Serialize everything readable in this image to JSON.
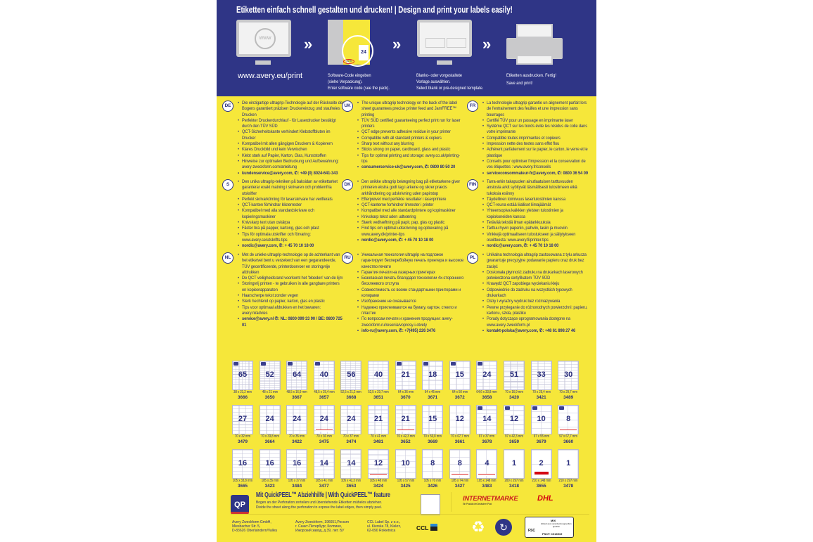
{
  "header": {
    "title": "Etiketten einfach schnell gestalten und drucken! | Design and print your labels easily!",
    "url": "www.avery.eu/print",
    "steps": [
      {
        "lines": [
          "Software-Code eingeben",
          "(siehe Verpackung).",
          "Enter software code (see the pack)."
        ],
        "sheet_number": "24",
        "code": "3475"
      },
      {
        "lines": [
          "Blanko- oder vorgestaltete",
          "Vorlage auswählen.",
          "Select blank or pre-designed template."
        ]
      },
      {
        "lines": [
          "Etiketten ausdrucken. Fertig!",
          "Save and print!"
        ]
      }
    ],
    "www_label": "WWW",
    "chevron": "»"
  },
  "languages": [
    {
      "code": "DE",
      "items": [
        "Die einzigartige ultragrip-Technologie auf der Rückseite des Bogens garantiert präzisen Druckereinzug und staufreies Drucken",
        "Perfekter Druckerdurchlauf - für Laserdrucker bestätigt durch den TÜV SÜD",
        "QCT-Sicherheitskante verhindert Klebstoffbluten im Drucker",
        "Kompatibel mit allen gängigen Druckern & Kopierern",
        "Klares Druckbild und kein Verwischen",
        "Klebt stark auf Papier, Karton, Glas, Kunststoffen",
        "Hinweise zur optimalen Bedruckung und Aufbewahrung: avery-zweckform.com/anleitung"
      ],
      "contact": "kundenservice@avery.com, ✆: +49 (0) 8024-641-343"
    },
    {
      "code": "UK",
      "items": [
        "The unique ultragrip technology on the back of the label sheet guarantees precise printer feed and JamFREE™ printing",
        "TÜV SÜD certified guaranteeing perfect print run for laser printers",
        "QCT edge prevents adhesive residue in your printer",
        "Compatible with all standard printers & copiers",
        "Sharp text without any blurring",
        "Sticks strong on paper, cardboard, glass and plastic",
        "Tips for optimal printing and storage: avery.co.uk/printing-tips"
      ],
      "contact": "consumerservice-uk@avery.com, ✆: 0800 80 50 20"
    },
    {
      "code": "FR",
      "items": [
        "La technologie ultragrip garantie un alignement parfait lors de l'entrainement des feuilles et une impression sans bourrages",
        "Certifié TÜV pour un passage en imprimante laser",
        "Système QCT sur les bords évite les résidus de colle dans votre imprimante",
        "Compatible toutes imprimantes et copieurs",
        "Impression nette des textes sans effet flou",
        "Adhérent parfaitement sur le papier, le carton, le verre et le plastique",
        "Conseils pour optimiser l'impression et la conservation de vos étiquettes : www.avery.fr/conseils"
      ],
      "contact": "serviceconsommateur-fr@avery.com, ✆: 0800 36 54 09"
    },
    {
      "code": "S",
      "items": [
        "Den unika ultragrip-tekniken på baksidan av etikettarket garanterar exakt matning i skrivaren och problemfria utskrifter",
        "Perfekt skrivarkörning för laserskrivare har verifierats",
        "QCT-kanten förhindrar klisterrester",
        "Kompatibel med alla standardskrivare och kopieringsmaskiner",
        "Knivskarp text utan oskärpa",
        "Fäster bra på papper, kartong, glas och plast",
        "Tips för optimala utskrifter och förvaring: www.avery.se/utskrifts-tips"
      ],
      "contact": "nordic@avery.com, ✆: + 45 70 10 18 00"
    },
    {
      "code": "DK",
      "items": [
        "Den unikke ultragrip belægning bag på etiketarkene giver printeren ekstra godt tag i arkene og sikrer præcis arkhåndtering og udskrivning uden papirstop",
        "Efterprøvet med perfekte resultater i laserprintere",
        "QCT-kanterne forhindrer limrester i printer",
        "Kompatibel med alle standardprintere og kopimaskiner",
        "Knivskarp tekst uden udtværing",
        "Stærk vedhæftning på papir, pap, glas og plastic",
        "Find tips om optimal udskrivning og opbevaring på www.avery.dk/printer-tips"
      ],
      "contact": "nordic@avery.com, ✆: + 45 70 10 18 00"
    },
    {
      "code": "FIN",
      "items": [
        "Tarra-arkin takapuolen ainutlaatuisen tarttuvuuden ansiosta arkit syöttyvät täsmällisesti tulostimeen eikä tukoksia esiinny",
        "Täydellinen toimivuus lasertulostimien kanssa",
        "QCT-reuna estää liialliset liimajäämät",
        "Yhteensopiva kaikkien yleisten tulostimien ja kopiokoneiden kanssa",
        "Terävää tekstiä ilman epätarkkuuksia",
        "Tarttuu hyvin paperiin, pahviin, lasiin ja muoviin",
        "Vinkkejä optimaaliseen tulostukseen ja säilytykseen osoitteesta: www.avery.fi/printer-tips"
      ],
      "contact": "nordic@avery.com, ✆: + 45 70 10 18 00"
    },
    {
      "code": "NL",
      "items": [
        "Met de unieke ultragrip-technologie op de achterkant van het etiketvel bent u verzekerd van een gegarandeerde, TÜV gecertificeerde, printerdoorvoer en storingvrije afdrukken",
        "De QCT veiligheidsrand voorkomt het 'bloeden' van de lijm",
        "Storingvrij printen - te gebruiken in alle gangbare printers en kopieerapparaten",
        "Haarscherpe tekst zonder vegen",
        "Sterk hechtend op papier, karton, glas en plastic",
        "Tips voor optimaal afdrukken en het bewaren: avery.nl/advies"
      ],
      "contact": "service@avery.nl ✆: NL: 0800 099 33 90 / BE: 0800 725 01"
    },
    {
      "code": "RU",
      "items": [
        "Уникальная технология ultragrip на подложке гарантирует бесперебойную печать принтера и высокое качество печати",
        "Гарантия печати на лазерных принтерах",
        "Безопасная печать благодаря технологии 4х-стороннего бесклеевого отступа",
        "Совместимость со всеми стандартными принтерами и копирами",
        "Изображение не смазывается",
        "Надежно приклеиваются на бумагу, картон, стекло и пластик",
        "По вопросам печати и хранения продукции: avery-zweckform.ru/resenia/voprosy-i-otvety"
      ],
      "contact": "info-ru@avery.com, ✆: +7(495) 226 3476"
    },
    {
      "code": "PL",
      "items": [
        "Unikalna technologia ultragrip zastosowana z tyłu arkusza gwarantuje precyzyjne podawanie papieru oraz druk bez zacięć",
        "Doskonała płynność zadruku na drukarkach laserowych potwierdzona certyfikatem TÜV SÜD",
        "Krawędź QCT zapobiega wyciekaniu kleju",
        "Odpowiednie do zadruku na wszystkich typowych drukarkach",
        "Ostry i wyraźny wydruk bez rozmazywania",
        "Pewne przyleganie do różnorodnych powierzchni: papieru, kartonu, szkła, plastiku",
        "Porady dotyczące oprogramowania dostępne na www.avery-zweckform.pl"
      ],
      "contact": "kontakt-polska@avery.com, ✆: +48 61 898 27 46"
    }
  ],
  "labels": [
    [
      {
        "n": "65",
        "dim": "38 x 21,2 mm",
        "code": "3666",
        "logo": true
      },
      {
        "n": "52",
        "dim": "48 x 21 mm",
        "code": "3650",
        "logo": true
      },
      {
        "n": "64",
        "dim": "48,5 x 16,9 mm",
        "code": "3667",
        "logo": true
      },
      {
        "n": "40",
        "dim": "48,5 x 25,4 mm",
        "code": "3657",
        "logo": true
      },
      {
        "n": "56",
        "dim": "52,5 x 21,2 mm",
        "code": "3668"
      },
      {
        "n": "40",
        "dim": "52,5 x 29,7 mm",
        "code": "3651"
      },
      {
        "n": "21",
        "dim": "64 x 36 mm",
        "code": "3670",
        "logo": true
      },
      {
        "n": "18",
        "dim": "64 x 45 mm",
        "code": "3671",
        "logo": true
      },
      {
        "n": "15",
        "dim": "64 x 50 mm",
        "code": "3672",
        "logo": true
      },
      {
        "n": "24",
        "dim": "64,6 x 33,8 mm",
        "code": "3658",
        "logo": true
      },
      {
        "n": "51",
        "dim": "70 x 16,9 mm",
        "code": "3420"
      },
      {
        "n": "33",
        "dim": "70 x 25,4 mm",
        "code": "3421"
      },
      {
        "n": "30",
        "dim": "70 x 29,7 mm",
        "code": "3489"
      }
    ],
    [
      {
        "n": "27",
        "dim": "70 x 32 mm",
        "code": "3479"
      },
      {
        "n": "24",
        "dim": "70 x 33,8 mm",
        "code": "3664"
      },
      {
        "n": "24",
        "dim": "70 x 35 mm",
        "code": "3422"
      },
      {
        "n": "24",
        "dim": "70 x 36 mm",
        "code": "3475",
        "im": true
      },
      {
        "n": "24",
        "dim": "70 x 37 mm",
        "code": "3474"
      },
      {
        "n": "21",
        "dim": "70 x 41 mm",
        "code": "3481"
      },
      {
        "n": "21",
        "dim": "70 x 42,3 mm",
        "code": "3652",
        "im": true
      },
      {
        "n": "15",
        "dim": "70 x 50,8 mm",
        "code": "3669"
      },
      {
        "n": "12",
        "dim": "70 x 67,7 mm",
        "code": "3661"
      },
      {
        "n": "14",
        "dim": "97 x 37 mm",
        "code": "3678",
        "logo": true
      },
      {
        "n": "12",
        "dim": "97 x 42,3 mm",
        "code": "3659",
        "logo": true
      },
      {
        "n": "10",
        "dim": "97 x 55 mm",
        "code": "3679",
        "logo": true
      },
      {
        "n": "8",
        "dim": "97 x 67,7 mm",
        "code": "3660",
        "logo": true,
        "im": true
      }
    ],
    [
      {
        "n": "16",
        "dim": "105 x 33,8 mm",
        "code": "3665"
      },
      {
        "n": "16",
        "dim": "105 x 35 mm",
        "code": "3423"
      },
      {
        "n": "16",
        "dim": "105 x 37 mm",
        "code": "3484"
      },
      {
        "n": "14",
        "dim": "105 x 41 mm",
        "code": "3477"
      },
      {
        "n": "14",
        "dim": "105 x 42,3 mm",
        "code": "3653"
      },
      {
        "n": "12",
        "dim": "105 x 48 mm",
        "code": "3424",
        "im": true
      },
      {
        "n": "10",
        "dim": "105 x 57 mm",
        "code": "3425"
      },
      {
        "n": "8",
        "dim": "105 x 70 mm",
        "code": "3426"
      },
      {
        "n": "8",
        "dim": "105 x 74 mm",
        "code": "3427",
        "im": true
      },
      {
        "n": "4",
        "dim": "105 x 148 mm",
        "code": "3483",
        "im": true
      },
      {
        "n": "1",
        "dim": "200 x 297 mm",
        "code": "3418"
      },
      {
        "n": "2",
        "dim": "210 x 148 mm",
        "code": "3655",
        "dhl": true
      },
      {
        "n": "1",
        "dim": "210 x 297 mm",
        "code": "3478"
      }
    ]
  ],
  "quickpeel": {
    "logo": "QP",
    "title": "Mit QuickPEEL™ Abziehhilfe | With QuickPEEL™ feature",
    "line1": "Bogen an der Perforation zerteilen und überstehende Etiketten mühelos abziehen.",
    "line2": "Divide the sheet along the perforation to expose the label edges, then simply peel."
  },
  "partners": {
    "internetmarke": "INTERNETMARKE",
    "internetmarke_sub": "Ein Produkt der Deutschen Post",
    "dhl": "DHL"
  },
  "footer": {
    "addresses": [
      [
        "Avery Zweckform GmbH,",
        "Miesbacher Str. 5,",
        "D-83626 Oberlaindern/Valley"
      ],
      [
        "Avery Zweckform, 196651,Россия",
        "г. Санкт-Петербург, Колпино,",
        "Ижорский завод, д.39, лит. БУ"
      ],
      [
        "CCL Label Sp. z o.o.,",
        "ul. Kierska 78, Kiekrz,",
        "62-090 Rokietnica"
      ]
    ],
    "ccl": "CCL",
    "fsc_mix": "MIX",
    "fsc_text": "Etikett aus verantwortungsvollen Quellen",
    "fsc_code": "FSC® C013519",
    "fsc": "FSC"
  },
  "colors": {
    "blue": "#2f3586",
    "yellow": "#f6e73a",
    "text": "#2b2f7e"
  }
}
